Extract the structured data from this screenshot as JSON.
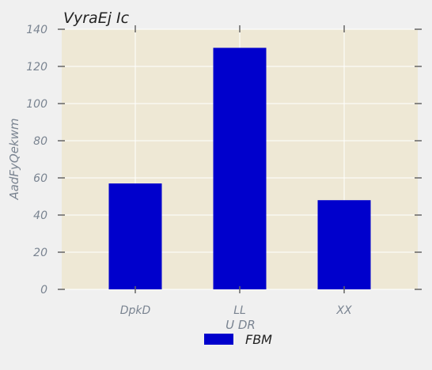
{
  "chart_data": {
    "type": "bar",
    "title": "VyraEj Ic",
    "xlabel": "U DR",
    "ylabel": "AadFyQekwm",
    "categories": [
      "DpkD",
      "LL",
      "XX"
    ],
    "series": [
      {
        "name": "FBM",
        "values": [
          57,
          130,
          48
        ]
      }
    ],
    "ylim": [
      0,
      140
    ],
    "yticks": [
      0,
      20,
      40,
      60,
      80,
      100,
      120,
      140
    ],
    "grid": true,
    "legend": "bottom-center",
    "colors": {
      "bar": "#0000cc",
      "plot_bg": "#eee8d5",
      "page_bg": "#f0f0f0",
      "grid": "#ffffff",
      "tick": "#666666"
    }
  }
}
